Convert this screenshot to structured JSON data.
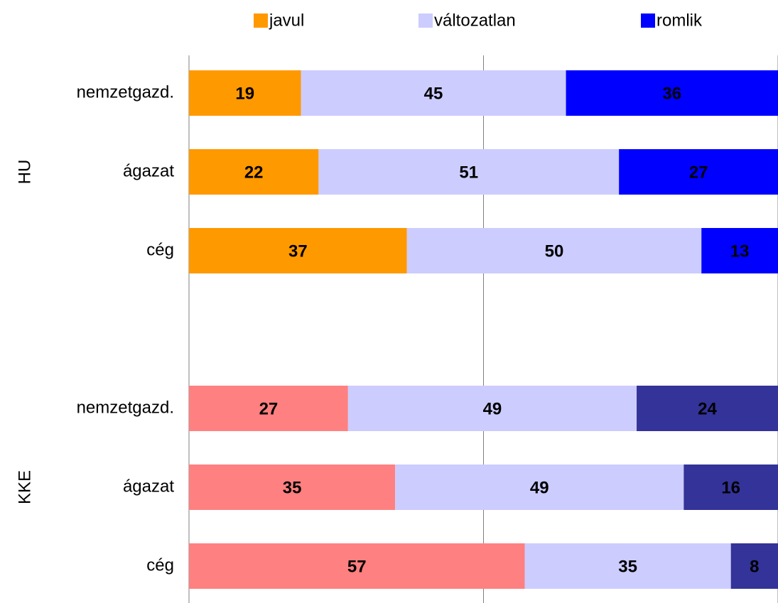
{
  "chart_data": {
    "type": "stacked-bar-horizontal",
    "series": [
      {
        "name": "javul",
        "colors": [
          "#ff9900",
          "#ff8080"
        ]
      },
      {
        "name": "változatlan",
        "colors": [
          "#ccccff",
          "#ccccff"
        ]
      },
      {
        "name": "romlik",
        "colors": [
          "#0000ff",
          "#333399"
        ]
      }
    ],
    "groups": [
      {
        "name": "HU",
        "categories": [
          "nemzetgazd.",
          "ágazat",
          "cég"
        ],
        "values": [
          [
            19,
            22,
            37
          ],
          [
            45,
            51,
            50
          ],
          [
            36,
            27,
            13
          ]
        ]
      },
      {
        "name": "KKE",
        "categories": [
          "nemzetgazd.",
          "ágazat",
          "cég"
        ],
        "values": [
          [
            27,
            35,
            57
          ],
          [
            49,
            49,
            35
          ],
          [
            24,
            16,
            8
          ]
        ]
      }
    ],
    "xlim": [
      0,
      100
    ],
    "xticks": [
      0,
      50,
      100
    ],
    "grid": true,
    "legend": "top"
  }
}
